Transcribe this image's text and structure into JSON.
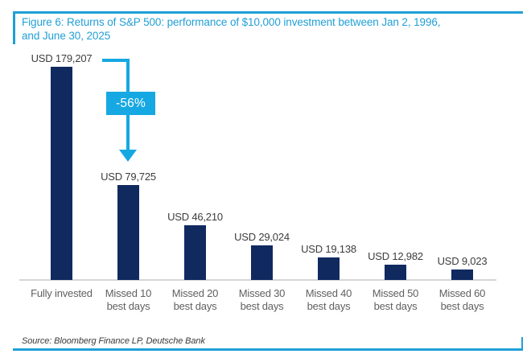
{
  "figure": {
    "title_line1": "Figure 6: Returns of S&P 500: performance of $10,000 investment between Jan 2, 1996,",
    "title_line2": "and June 30, 2025",
    "source": "Source: Bloomberg Finance LP, Deutsche Bank"
  },
  "annotation": {
    "label": "-56%"
  },
  "colors": {
    "frame_cyan": "#219fd6",
    "arrow_cyan": "#16a8e2",
    "bar_navy": "#102a60",
    "value_label": "#3d3d3d",
    "category_label": "#5f6062",
    "axis_line": "#d6d6d6",
    "source_text": "#3a3a3a",
    "badge_text": "#ffffff"
  },
  "chart_data": {
    "type": "bar",
    "title": "Figure 6: Returns of S&P 500: performance of $10,000 investment between Jan 2, 1996, and June 30, 2025",
    "categories": [
      "Fully invested",
      "Missed 10\nbest days",
      "Missed 20\nbest days",
      "Missed 30\nbest days",
      "Missed 40\nbest days",
      "Missed 50\nbest days",
      "Missed 60\nbest days"
    ],
    "values": [
      179207,
      79725,
      46210,
      29024,
      19138,
      12982,
      9023
    ],
    "bar_labels": [
      "USD 179,207",
      "USD 79,725",
      "USD 46,210",
      "USD 29,024",
      "USD 19,138",
      "USD 12,982",
      "USD 9,023"
    ],
    "ylim": [
      0,
      179207
    ],
    "grid": false,
    "legend": false,
    "annotations": [
      {
        "text": "-56%",
        "from": "Fully invested",
        "to": "Missed 10 best days"
      }
    ],
    "source": "Source: Bloomberg Finance LP, Deutsche Bank"
  }
}
